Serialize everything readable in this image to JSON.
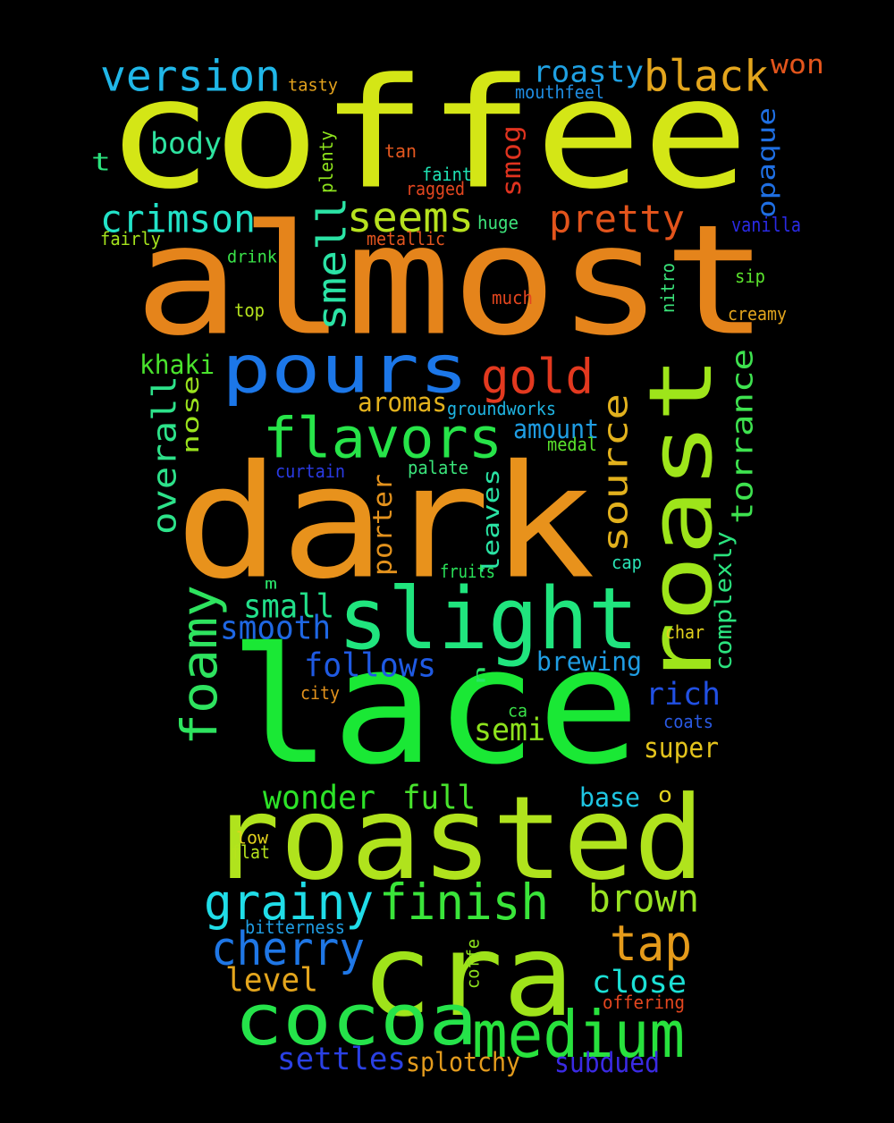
{
  "background": "#000000",
  "words": [
    {
      "text": "coffee",
      "color": "#d4e616"
    },
    {
      "text": "almost",
      "color": "#e5841b"
    },
    {
      "text": "dark",
      "color": "#e8921c"
    },
    {
      "text": "lace",
      "color": "#1ae835"
    },
    {
      "text": "roasted",
      "color": "#b0e31d"
    },
    {
      "text": "roast",
      "color": "#9ee51a"
    },
    {
      "text": "cra",
      "color": "#9fe31a"
    },
    {
      "text": "slight",
      "color": "#20e57e"
    },
    {
      "text": "pours",
      "color": "#1c77e8"
    },
    {
      "text": "cocoa",
      "color": "#25e34a"
    },
    {
      "text": "medium",
      "color": "#28e23d"
    },
    {
      "text": "flavors",
      "color": "#27e449"
    },
    {
      "text": "version",
      "color": "#20b7e8"
    },
    {
      "text": "black",
      "color": "#e3a51d"
    },
    {
      "text": "gold",
      "color": "#e3391f"
    },
    {
      "text": "smell",
      "color": "#2be3a5"
    },
    {
      "text": "seems",
      "color": "#b7e21f"
    },
    {
      "text": "pretty",
      "color": "#e3541c"
    },
    {
      "text": "roasty",
      "color": "#1fa1e3"
    },
    {
      "text": "won",
      "color": "#e3551c"
    },
    {
      "text": "crimson",
      "color": "#22e2c8"
    },
    {
      "text": "grainy",
      "color": "#20dde8"
    },
    {
      "text": "finish",
      "color": "#3ae53a"
    },
    {
      "text": "foamy",
      "color": "#2ee35f"
    },
    {
      "text": "source",
      "color": "#e2b11d"
    },
    {
      "text": "torrance",
      "color": "#3ee24f"
    },
    {
      "text": "brown",
      "color": "#99e323"
    },
    {
      "text": "tap",
      "color": "#e59b1b"
    },
    {
      "text": "cherry",
      "color": "#1f77e6"
    },
    {
      "text": "overall",
      "color": "#2de28a"
    },
    {
      "text": "opaque",
      "color": "#1f6fe3"
    },
    {
      "text": "body",
      "color": "#2ee3a0"
    },
    {
      "text": "smog",
      "color": "#e0331f"
    },
    {
      "text": "close",
      "color": "#1ce0d5"
    },
    {
      "text": "smooth",
      "color": "#1f67e3"
    },
    {
      "text": "follows",
      "color": "#1f5ae3"
    },
    {
      "text": "small",
      "color": "#22e08a"
    },
    {
      "text": "rich",
      "color": "#2150e3"
    },
    {
      "text": "semi",
      "color": "#8ee31d"
    },
    {
      "text": "wonder",
      "color": "#2de328"
    },
    {
      "text": "full",
      "color": "#48e32d"
    },
    {
      "text": "level",
      "color": "#e3a51d"
    },
    {
      "text": "settles",
      "color": "#2a40e3"
    },
    {
      "text": "splotchy",
      "color": "#e39b1d"
    },
    {
      "text": "subdued",
      "color": "#3a2ae3"
    },
    {
      "text": "brewing",
      "color": "#1f9de3"
    },
    {
      "text": "super",
      "color": "#e3c31d"
    },
    {
      "text": "base",
      "color": "#1fc6e3"
    },
    {
      "text": "aromas",
      "color": "#e3b21d"
    },
    {
      "text": "amount",
      "color": "#1f9de3"
    },
    {
      "text": "nose",
      "color": "#9ae31d"
    },
    {
      "text": "khaki",
      "color": "#4ae32d"
    },
    {
      "text": "porter",
      "color": "#e3921d"
    },
    {
      "text": "leaves",
      "color": "#2ae3a4"
    },
    {
      "text": "complexly",
      "color": "#2be37e"
    },
    {
      "text": "t",
      "color": "#2be37e"
    },
    {
      "text": "o",
      "color": "#e3d21d"
    },
    {
      "text": "tasty",
      "color": "#e3a21d"
    },
    {
      "text": "mouthfeel",
      "color": "#1f8de3"
    },
    {
      "text": "plenty",
      "color": "#8ee31d"
    },
    {
      "text": "tan",
      "color": "#e3571f"
    },
    {
      "text": "faint",
      "color": "#1fe3b5"
    },
    {
      "text": "ragged",
      "color": "#e3461f"
    },
    {
      "text": "huge",
      "color": "#3de37a"
    },
    {
      "text": "vanilla",
      "color": "#2a2ae3"
    },
    {
      "text": "fairly",
      "color": "#a5e31d"
    },
    {
      "text": "metallic",
      "color": "#e3551f"
    },
    {
      "text": "drink",
      "color": "#3ae34a"
    },
    {
      "text": "sip",
      "color": "#5ae32d"
    },
    {
      "text": "much",
      "color": "#e3461f"
    },
    {
      "text": "nitro",
      "color": "#3ae37a"
    },
    {
      "text": "top",
      "color": "#b5e31d"
    },
    {
      "text": "creamy",
      "color": "#e3a51d"
    },
    {
      "text": "groundworks",
      "color": "#1fb5e3"
    },
    {
      "text": "medal",
      "color": "#5ae32d"
    },
    {
      "text": "curtain",
      "color": "#2a3ae3"
    },
    {
      "text": "palate",
      "color": "#3ae37a"
    },
    {
      "text": "fruits",
      "color": "#2ae35a"
    },
    {
      "text": "cap",
      "color": "#2ae3b5"
    },
    {
      "text": "m",
      "color": "#2ae36a"
    },
    {
      "text": "char",
      "color": "#e3d21d"
    },
    {
      "text": "n",
      "color": "#2ae36a"
    },
    {
      "text": "city",
      "color": "#e3921d"
    },
    {
      "text": "ca",
      "color": "#3ae34a"
    },
    {
      "text": "coats",
      "color": "#2a5ae3"
    },
    {
      "text": "low",
      "color": "#e3d21d"
    },
    {
      "text": "flat",
      "color": "#b5e31d"
    },
    {
      "text": "bitterness",
      "color": "#1f9de3"
    },
    {
      "text": "coffe",
      "color": "#8ee31d"
    },
    {
      "text": "offering",
      "color": "#e3461f"
    }
  ]
}
